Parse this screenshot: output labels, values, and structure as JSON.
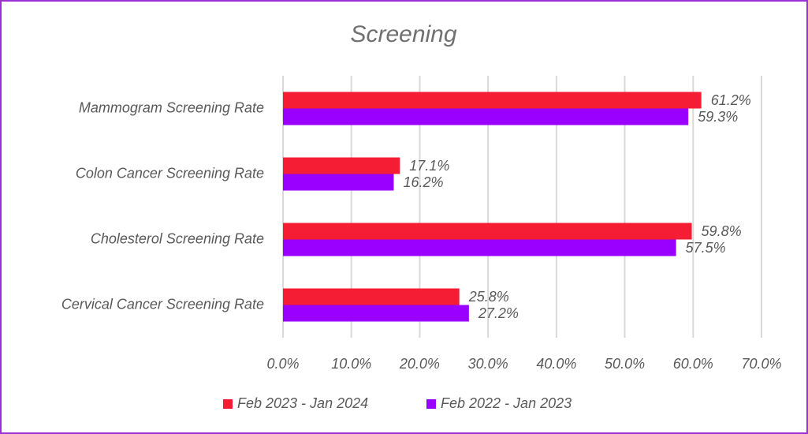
{
  "chart_data": {
    "type": "hbar",
    "title": "Screening",
    "categories": [
      "Mammogram Screening Rate",
      "Colon Cancer Screening Rate",
      "Cholesterol Screening Rate",
      "Cervical Cancer Screening Rate"
    ],
    "series": [
      {
        "name": "Feb 2023 - Jan 2024",
        "color": "#f51d33",
        "values": [
          61.2,
          17.1,
          59.8,
          25.8
        ],
        "value_labels": [
          "61.2%",
          "17.1%",
          "59.8%",
          "25.8%"
        ]
      },
      {
        "name": "Feb 2022 - Jan 2023",
        "color": "#9900ff",
        "values": [
          59.3,
          16.2,
          57.5,
          27.2
        ],
        "value_labels": [
          "59.3%",
          "16.2%",
          "57.5%",
          "27.2%"
        ]
      }
    ],
    "xlim": [
      0,
      70
    ],
    "xticks": [
      {
        "value": 0,
        "label": "0.0%"
      },
      {
        "value": 10,
        "label": "10.0%"
      },
      {
        "value": 20,
        "label": "20.0%"
      },
      {
        "value": 30,
        "label": "30.0%"
      },
      {
        "value": 40,
        "label": "40.0%"
      },
      {
        "value": 50,
        "label": "50.0%"
      },
      {
        "value": 60,
        "label": "60.0%"
      },
      {
        "value": 70,
        "label": "70.0%"
      }
    ],
    "grid": true,
    "legend": "bottom"
  }
}
